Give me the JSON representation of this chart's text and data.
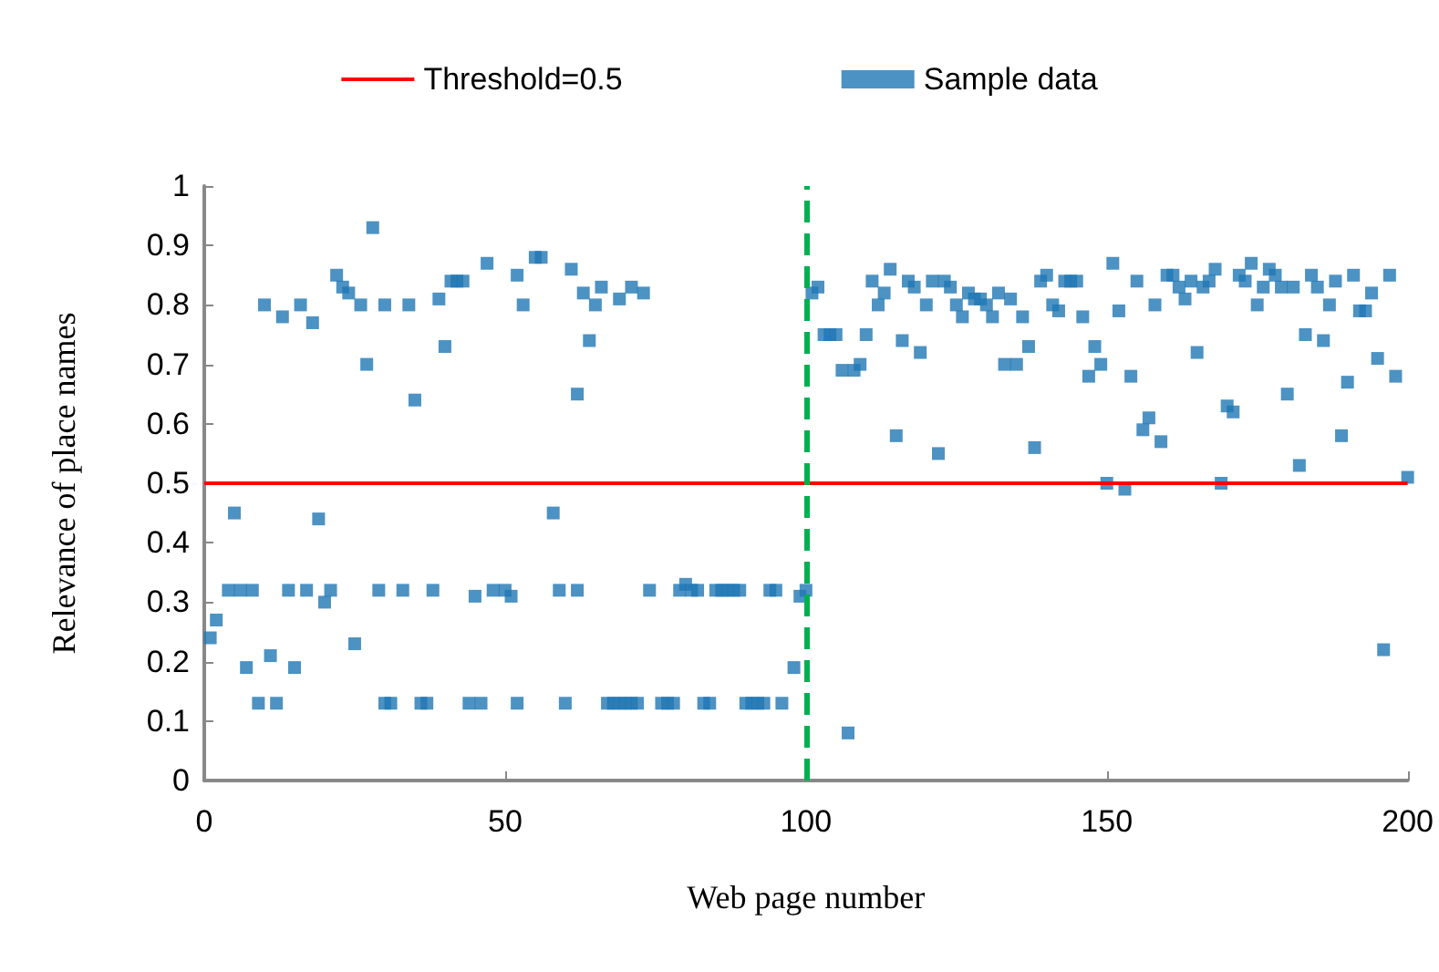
{
  "chart_data": {
    "type": "scatter",
    "xlabel": "Web page number",
    "ylabel": "Relevance of place names",
    "xlim": [
      0,
      200
    ],
    "xticks": [
      0,
      50,
      100,
      150,
      200
    ],
    "ylim": [
      0,
      1
    ],
    "yticks": [
      0,
      0.1,
      0.2,
      0.3,
      0.4,
      0.5,
      0.6,
      0.7,
      0.8,
      0.9,
      1
    ],
    "grid": false,
    "legend": "top",
    "marker": "square",
    "ref_lines": [
      {
        "axis": "y",
        "value": 0.5,
        "label": "Threshold=0.5",
        "color": "#ff0000",
        "line_style": "solid"
      },
      {
        "axis": "x",
        "value": 100,
        "label": null,
        "color": "#00b050",
        "line_style": "dashed"
      }
    ],
    "series": [
      {
        "name": "Sample data",
        "color": "#1f77b4",
        "x": [
          10,
          13,
          16,
          18,
          22,
          23,
          24,
          26,
          27,
          28,
          30,
          34,
          35,
          39,
          40,
          41,
          42,
          43,
          47,
          52,
          53,
          55,
          56,
          61,
          62,
          63,
          64,
          65,
          66,
          69,
          71,
          73,
          1,
          2,
          4,
          5,
          6,
          7,
          8,
          9,
          11,
          12,
          14,
          15,
          17,
          19,
          20,
          21,
          25,
          29,
          30,
          31,
          33,
          36,
          37,
          38,
          44,
          45,
          46,
          48,
          50,
          51,
          52,
          58,
          59,
          60,
          62,
          67,
          68,
          69,
          70,
          71,
          72,
          74,
          76,
          77,
          78,
          79,
          80,
          81,
          82,
          83,
          84,
          85,
          86,
          87,
          88,
          89,
          90,
          91,
          92,
          93,
          94,
          95,
          96,
          98,
          99,
          100,
          101,
          102,
          103,
          104,
          105,
          106,
          107,
          108,
          109,
          110,
          111,
          112,
          113,
          114,
          115,
          116,
          117,
          118,
          119,
          120,
          121,
          122,
          123,
          124,
          125,
          126,
          127,
          128,
          129,
          130,
          131,
          132,
          133,
          134,
          135,
          136,
          137,
          138,
          139,
          140,
          141,
          142,
          143,
          144,
          145,
          146,
          147,
          148,
          149,
          150,
          151,
          152,
          153,
          154,
          155,
          156,
          157,
          158,
          159,
          160,
          161,
          162,
          163,
          164,
          165,
          166,
          167,
          168,
          169,
          170,
          171,
          172,
          173,
          174,
          175,
          176,
          177,
          178,
          179,
          180,
          181,
          182,
          183,
          184,
          185,
          186,
          187,
          188,
          189,
          190,
          191,
          192,
          193,
          194,
          195,
          196,
          197,
          198,
          200
        ],
        "values": [
          0.8,
          0.78,
          0.8,
          0.77,
          0.85,
          0.83,
          0.82,
          0.8,
          0.7,
          0.93,
          0.8,
          0.8,
          0.64,
          0.81,
          0.73,
          0.84,
          0.84,
          0.84,
          0.87,
          0.85,
          0.8,
          0.88,
          0.88,
          0.86,
          0.65,
          0.82,
          0.74,
          0.8,
          0.83,
          0.81,
          0.83,
          0.82,
          0.24,
          0.27,
          0.32,
          0.45,
          0.32,
          0.19,
          0.32,
          0.13,
          0.21,
          0.13,
          0.32,
          0.19,
          0.32,
          0.44,
          0.3,
          0.32,
          0.23,
          0.32,
          0.13,
          0.13,
          0.32,
          0.13,
          0.13,
          0.32,
          0.13,
          0.31,
          0.13,
          0.32,
          0.32,
          0.31,
          0.13,
          0.45,
          0.32,
          0.13,
          0.32,
          0.13,
          0.13,
          0.13,
          0.13,
          0.13,
          0.13,
          0.32,
          0.13,
          0.13,
          0.13,
          0.32,
          0.33,
          0.32,
          0.32,
          0.13,
          0.13,
          0.32,
          0.32,
          0.32,
          0.32,
          0.32,
          0.13,
          0.13,
          0.13,
          0.13,
          0.32,
          0.32,
          0.13,
          0.19,
          0.31,
          0.32,
          0.82,
          0.83,
          0.75,
          0.75,
          0.75,
          0.69,
          0.08,
          0.69,
          0.7,
          0.75,
          0.84,
          0.8,
          0.82,
          0.86,
          0.58,
          0.74,
          0.84,
          0.83,
          0.72,
          0.8,
          0.84,
          0.55,
          0.84,
          0.83,
          0.8,
          0.78,
          0.82,
          0.81,
          0.81,
          0.8,
          0.78,
          0.82,
          0.7,
          0.81,
          0.7,
          0.78,
          0.73,
          0.56,
          0.84,
          0.85,
          0.8,
          0.79,
          0.84,
          0.84,
          0.84,
          0.78,
          0.68,
          0.73,
          0.7,
          0.5,
          0.87,
          0.79,
          0.49,
          0.68,
          0.84,
          0.59,
          0.61,
          0.8,
          0.57,
          0.85,
          0.85,
          0.83,
          0.81,
          0.84,
          0.72,
          0.83,
          0.84,
          0.86,
          0.5,
          0.63,
          0.62,
          0.85,
          0.84,
          0.87,
          0.8,
          0.83,
          0.86,
          0.85,
          0.83,
          0.65,
          0.83,
          0.53,
          0.75,
          0.85,
          0.83,
          0.74,
          0.8,
          0.84,
          0.58,
          0.67,
          0.85,
          0.79,
          0.79,
          0.82,
          0.71,
          0.22,
          0.85,
          0.68,
          0.51
        ]
      }
    ]
  }
}
